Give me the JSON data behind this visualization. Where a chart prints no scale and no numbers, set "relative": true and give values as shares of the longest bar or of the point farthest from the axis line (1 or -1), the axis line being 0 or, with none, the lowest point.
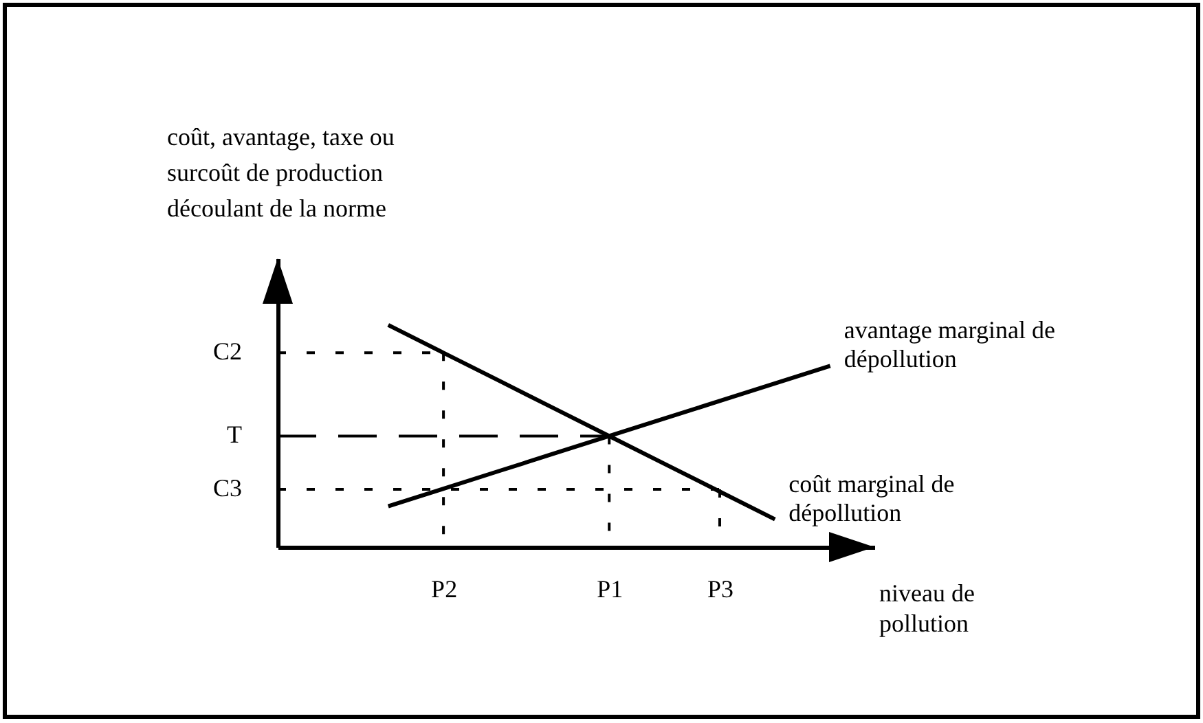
{
  "chart_data": {
    "type": "line",
    "relative": true,
    "ylabel": "coût, avantage, taxe ou surcoût de production découlant de la norme",
    "xlabel": "niveau de pollution",
    "categories": [
      null,
      null,
      null,
      "P2",
      null,
      null,
      "P1",
      null,
      "P3",
      null,
      null
    ],
    "series": [
      {
        "name": "coût marginal de dépollution",
        "color": "#000000",
        "values": [
          null,
          null,
          1,
          0.875,
          0.75,
          0.625,
          0.5,
          0.375,
          0.25,
          0.125,
          null
        ]
      },
      {
        "name": "avantage marginal de dépollution",
        "color": "#000000",
        "values": [
          null,
          null,
          0.184,
          0.263,
          0.342,
          0.421,
          0.5,
          0.579,
          0.658,
          0.737,
          0.816
        ]
      },
      {
        "name": "C2",
        "color": "#000000",
        "line_style": "dotted",
        "values": [
          0.875,
          0.875,
          0.875,
          0.875,
          null,
          null,
          null,
          null,
          null,
          null,
          null
        ]
      },
      {
        "color": "#000000",
        "line_style": "dotted",
        "x": [
          "P2",
          "P2"
        ],
        "values": [
          0.875,
          0
        ]
      },
      {
        "name": "T",
        "color": "#000000",
        "line_style": "dashed",
        "values": [
          0.5,
          0.5,
          0.5,
          0.5,
          0.5,
          0.5,
          0.5,
          null,
          null,
          null,
          null
        ]
      },
      {
        "color": "#000000",
        "line_style": "dotted",
        "x": [
          "P1",
          "P1"
        ],
        "values": [
          0.5,
          0
        ]
      },
      {
        "name": "C3",
        "color": "#000000",
        "line_style": "dotted",
        "values": [
          0.26,
          0.26,
          0.26,
          0.26,
          0.26,
          0.26,
          0.26,
          0.26,
          0.26,
          null,
          null
        ]
      },
      {
        "color": "#000000",
        "line_style": "dotted",
        "x": [
          "P3",
          "P3"
        ],
        "values": [
          0.26,
          0
        ]
      }
    ],
    "legend": false,
    "line_style": "solid"
  }
}
